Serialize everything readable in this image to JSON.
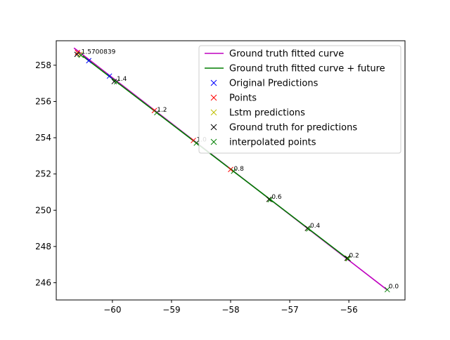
{
  "chart_data": {
    "type": "line",
    "title": "",
    "xlabel": "",
    "ylabel": "",
    "xlim": [
      -60.95,
      -55.05
    ],
    "ylim": [
      245.05,
      259.35
    ],
    "xticks": [
      -60,
      -59,
      -58,
      -57,
      -56
    ],
    "yticks": [
      246,
      248,
      250,
      252,
      254,
      256,
      258
    ],
    "xtick_labels": [
      "−60",
      "−59",
      "−58",
      "−57",
      "−56"
    ],
    "ytick_labels": [
      "246",
      "248",
      "250",
      "252",
      "254",
      "256",
      "258"
    ],
    "grid": false,
    "legend_position": "top-right",
    "series": [
      {
        "name": "Ground truth fitted curve",
        "kind": "line",
        "color": "#bf00bf",
        "points": [
          [
            -60.65,
            258.95
          ],
          [
            -55.35,
            245.6
          ]
        ]
      },
      {
        "name": "Ground truth fitted curve + future",
        "kind": "line",
        "color": "#007f00",
        "points": [
          [
            -60.5,
            258.5
          ],
          [
            -56.03,
            247.35
          ]
        ]
      },
      {
        "name": "Original Predictions",
        "kind": "marker",
        "color": "#0000ff",
        "points": [
          [
            -60.4,
            258.25
          ],
          [
            -60.05,
            257.4
          ]
        ]
      },
      {
        "name": "Points",
        "kind": "marker",
        "color": "#ff0000",
        "points": [
          [
            -60.59,
            258.7
          ],
          [
            -59.29,
            255.5
          ],
          [
            -58.63,
            253.85
          ],
          [
            -58.0,
            252.25
          ]
        ]
      },
      {
        "name": "Lstm predictions",
        "kind": "marker",
        "color": "#bfbf00",
        "points": [
          [
            -60.55,
            258.6
          ],
          [
            -57.35,
            250.6
          ],
          [
            -56.7,
            249.0
          ],
          [
            -56.02,
            247.35
          ]
        ]
      },
      {
        "name": "Ground truth for predictions",
        "kind": "marker",
        "color": "#000000",
        "points": [
          [
            -60.6,
            258.6
          ],
          [
            -59.97,
            257.1
          ],
          [
            -57.35,
            250.6
          ],
          [
            -56.7,
            249.0
          ],
          [
            -56.03,
            247.35
          ]
        ]
      },
      {
        "name": "interpolated points",
        "kind": "marker",
        "color": "#007f00",
        "points": [
          [
            -60.53,
            258.55
          ],
          [
            -59.93,
            257.08
          ],
          [
            -59.25,
            255.38
          ],
          [
            -58.58,
            253.7
          ],
          [
            -57.95,
            252.15
          ],
          [
            -57.33,
            250.58
          ],
          [
            -56.68,
            248.97
          ],
          [
            -56.01,
            247.33
          ],
          [
            -55.35,
            245.62
          ]
        ]
      }
    ],
    "annotations": [
      {
        "text": "1.5700839",
        "x": -60.55,
        "y": 258.6
      },
      {
        "text": "1.4",
        "x": -59.95,
        "y": 257.1
      },
      {
        "text": "1.2",
        "x": -59.27,
        "y": 255.4
      },
      {
        "text": "1.0",
        "x": -58.6,
        "y": 253.75
      },
      {
        "text": "0.8",
        "x": -57.97,
        "y": 252.15
      },
      {
        "text": "0.6",
        "x": -57.33,
        "y": 250.6
      },
      {
        "text": "0.4",
        "x": -56.68,
        "y": 249.0
      },
      {
        "text": "0.2",
        "x": -56.02,
        "y": 247.35
      },
      {
        "text": "0.0",
        "x": -55.35,
        "y": 245.65
      }
    ]
  }
}
